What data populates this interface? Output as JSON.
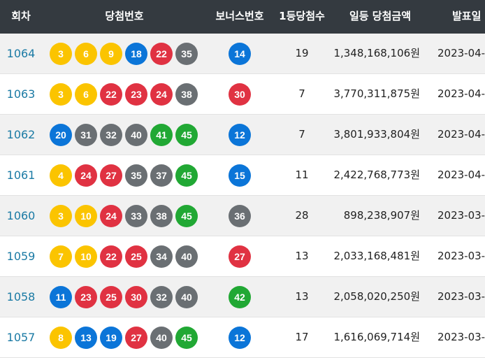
{
  "colors": {
    "header_bg": "#343a40",
    "ball_yellow": "#fbc400",
    "ball_blue": "#0b75d8",
    "ball_red": "#e03242",
    "ball_gray": "#6a6f73",
    "ball_green": "#21a834",
    "round_link": "#1a7aa4"
  },
  "header": {
    "round": "회차",
    "numbers": "당첨번호",
    "bonus": "보너스번호",
    "winners": "1등당첨수",
    "amount": "일등 당첨금액",
    "date": "발표일"
  },
  "rows": [
    {
      "round": "1064",
      "numbers": [
        "3",
        "6",
        "9",
        "18",
        "22",
        "35"
      ],
      "bonus": "14",
      "winners": "19",
      "amount": "1,348,168,106원",
      "date": "2023-04-"
    },
    {
      "round": "1063",
      "numbers": [
        "3",
        "6",
        "22",
        "23",
        "24",
        "38"
      ],
      "bonus": "30",
      "winners": "7",
      "amount": "3,770,311,875원",
      "date": "2023-04-"
    },
    {
      "round": "1062",
      "numbers": [
        "20",
        "31",
        "32",
        "40",
        "41",
        "45"
      ],
      "bonus": "12",
      "winners": "7",
      "amount": "3,801,933,804원",
      "date": "2023-04-"
    },
    {
      "round": "1061",
      "numbers": [
        "4",
        "24",
        "27",
        "35",
        "37",
        "45"
      ],
      "bonus": "15",
      "winners": "11",
      "amount": "2,422,768,773원",
      "date": "2023-04-"
    },
    {
      "round": "1060",
      "numbers": [
        "3",
        "10",
        "24",
        "33",
        "38",
        "45"
      ],
      "bonus": "36",
      "winners": "28",
      "amount": "898,238,907원",
      "date": "2023-03-"
    },
    {
      "round": "1059",
      "numbers": [
        "7",
        "10",
        "22",
        "25",
        "34",
        "40"
      ],
      "bonus": "27",
      "winners": "13",
      "amount": "2,033,168,481원",
      "date": "2023-03-"
    },
    {
      "round": "1058",
      "numbers": [
        "11",
        "23",
        "25",
        "30",
        "32",
        "40"
      ],
      "bonus": "42",
      "winners": "13",
      "amount": "2,058,020,250원",
      "date": "2023-03-"
    },
    {
      "round": "1057",
      "numbers": [
        "8",
        "13",
        "19",
        "27",
        "40",
        "45"
      ],
      "bonus": "12",
      "winners": "17",
      "amount": "1,616,069,714원",
      "date": "2023-03-"
    }
  ]
}
